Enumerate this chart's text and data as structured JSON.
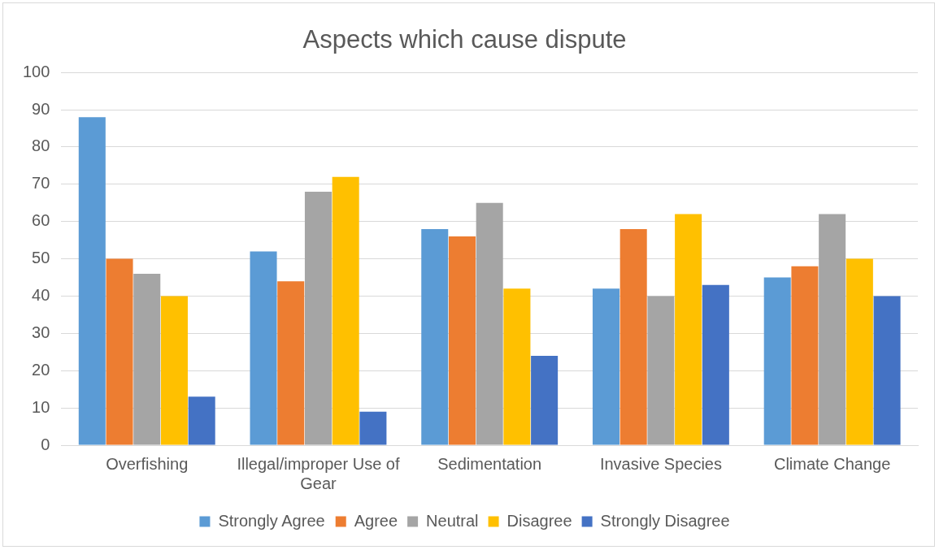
{
  "chart_data": {
    "type": "bar",
    "title": "Aspects which cause dispute",
    "categories": [
      "Overfishing",
      "Illegal/improper Use of Gear",
      "Sedimentation",
      "Invasive Species",
      "Climate Change"
    ],
    "series": [
      {
        "name": "Strongly Agree",
        "color": "#5b9bd5",
        "values": [
          88,
          52,
          58,
          42,
          45
        ]
      },
      {
        "name": "Agree",
        "color": "#ed7d31",
        "values": [
          50,
          44,
          56,
          58,
          48
        ]
      },
      {
        "name": "Neutral",
        "color": "#a5a5a5",
        "values": [
          46,
          68,
          65,
          40,
          62
        ]
      },
      {
        "name": "Disagree",
        "color": "#ffc000",
        "values": [
          40,
          72,
          42,
          62,
          50
        ]
      },
      {
        "name": "Strongly Disagree",
        "color": "#4472c4",
        "values": [
          13,
          9,
          24,
          43,
          40
        ]
      }
    ],
    "ylim": [
      0,
      100
    ],
    "yticks": [
      0,
      10,
      20,
      30,
      40,
      50,
      60,
      70,
      80,
      90,
      100
    ],
    "grid": "y",
    "legend": "bottom"
  }
}
